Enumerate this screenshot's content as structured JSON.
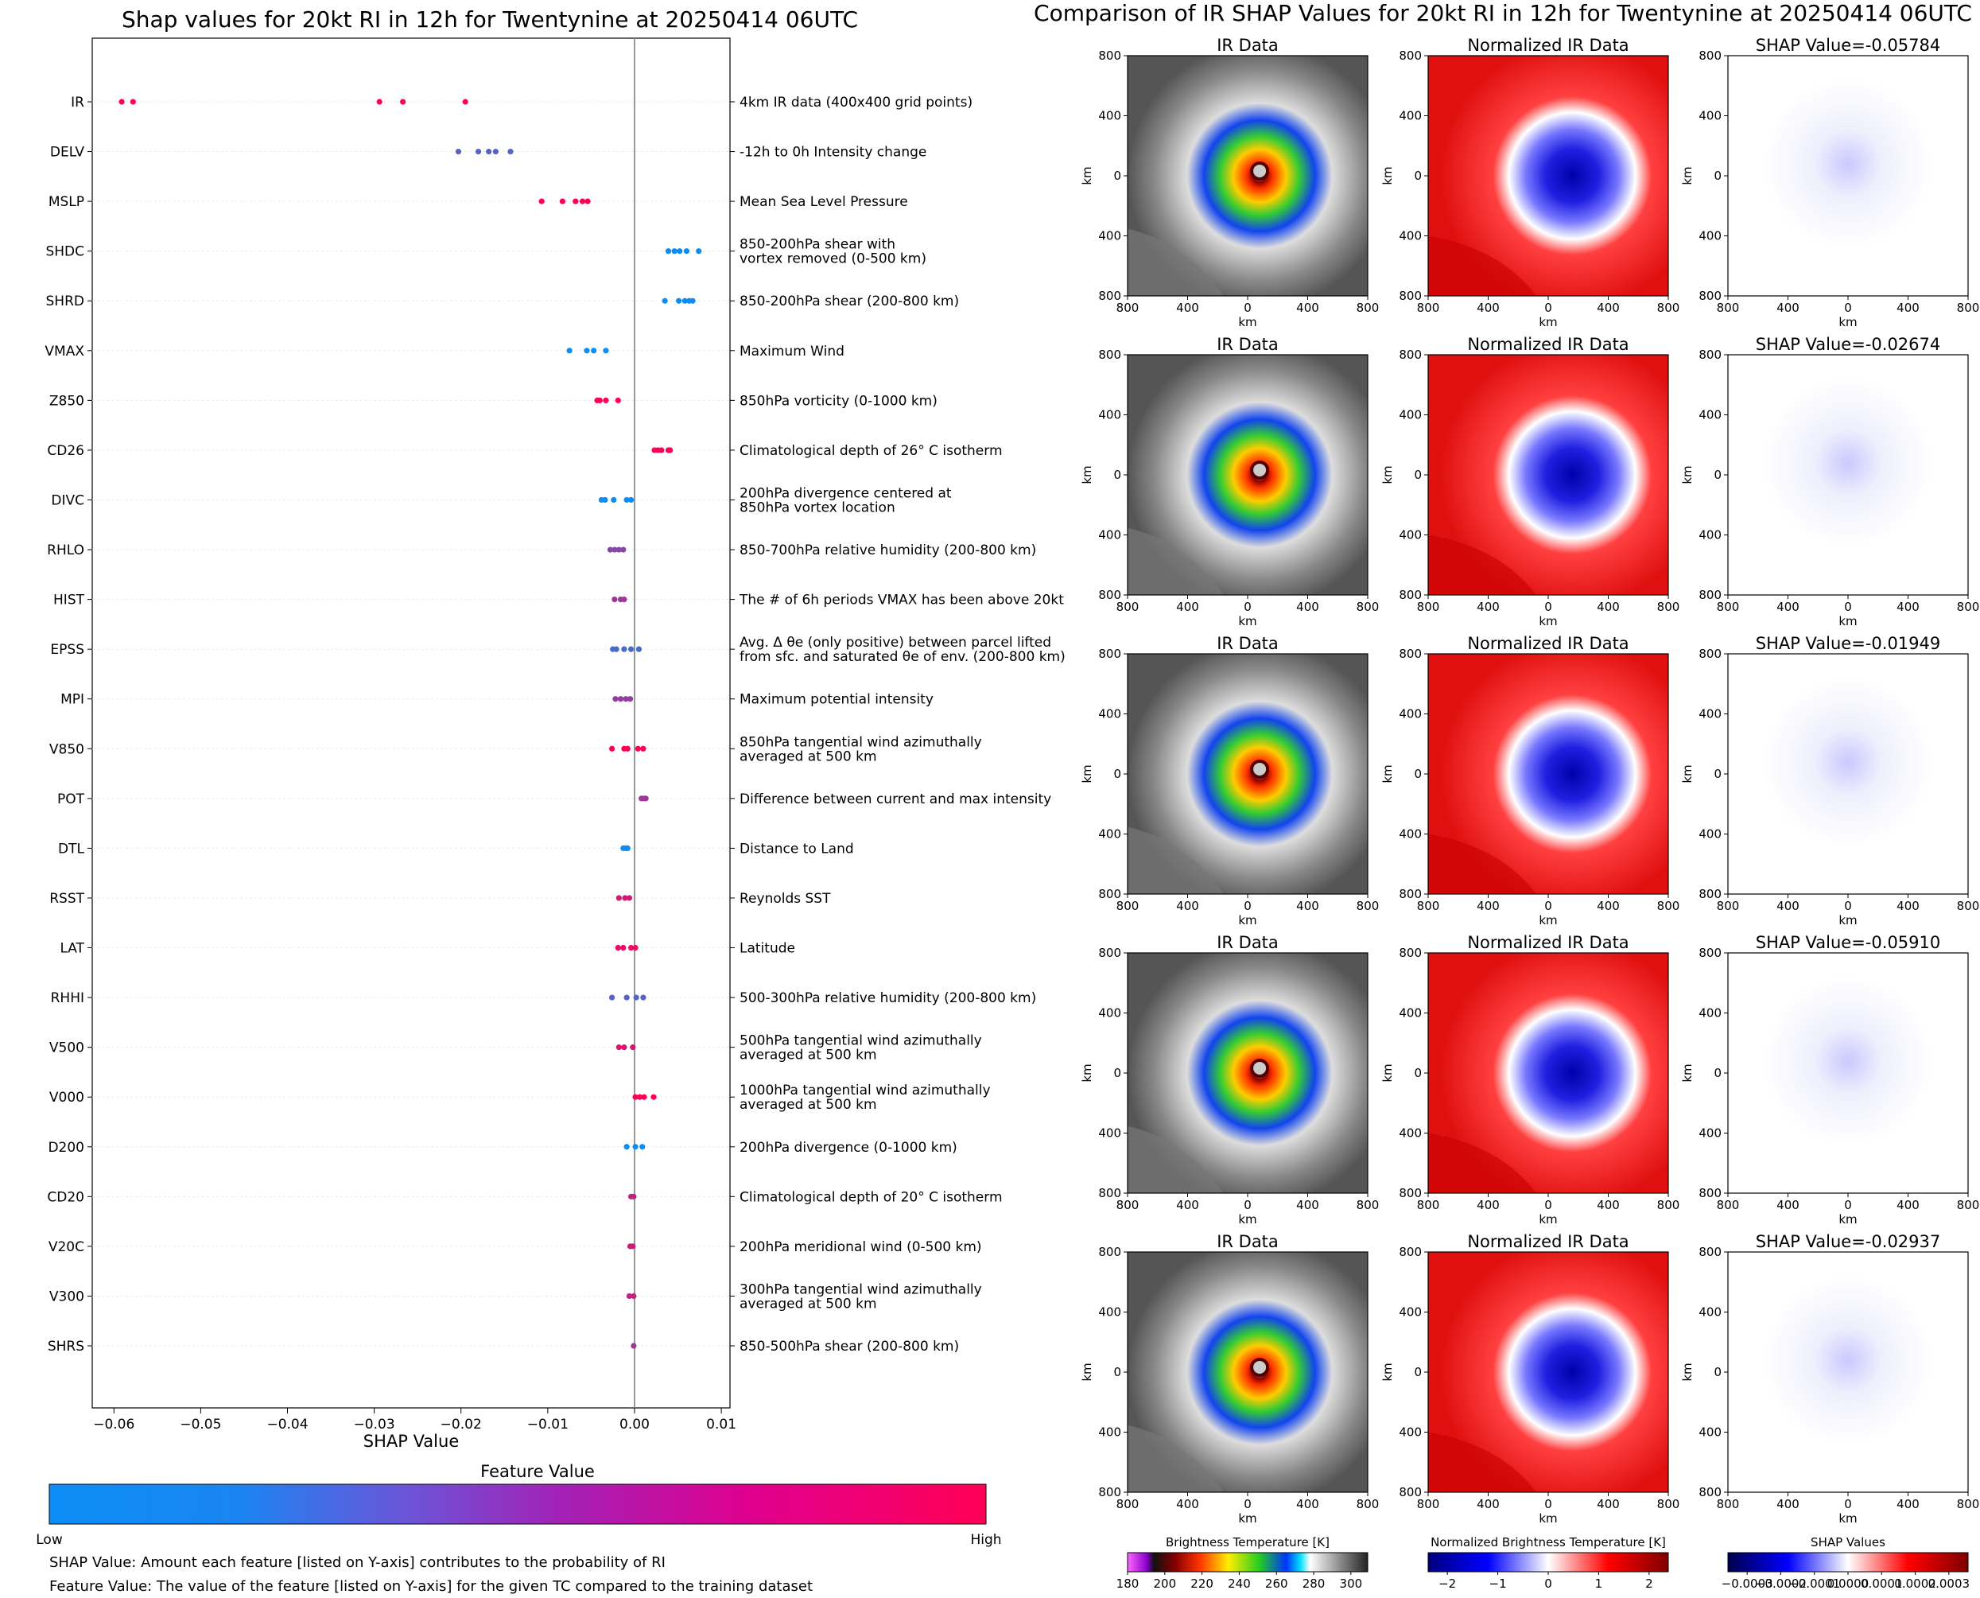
{
  "left_chart": {
    "title": "Shap values for 20kt RI in 12h for Twentynine at 20250414 06UTC",
    "xlabel": "SHAP Value"
  },
  "colorbar": {
    "title": "Feature Value",
    "low_label": "Low",
    "high_label": "High",
    "low_color": "#0b8df5",
    "high_color": "#ff0055"
  },
  "notes": {
    "line1": "SHAP Value: Amount each feature [listed on Y-axis] contributes to the probability of RI",
    "line2": "Feature Value: The value of the feature [listed on Y-axis] for the given TC compared to the training dataset"
  },
  "right_panel": {
    "title": "Comparison of IR SHAP Values for 20kt RI in 12h for Twentynine at 20250414 06UTC",
    "col_titles": [
      "IR Data",
      "Normalized IR Data"
    ],
    "shap_titles": [
      "SHAP Value=-0.05784",
      "SHAP Value=-0.02674",
      "SHAP Value=-0.01949",
      "SHAP Value=-0.05910",
      "SHAP Value=-0.02937"
    ],
    "axis_unit": "km",
    "tick_labels": [
      "800",
      "400",
      "0",
      "400",
      "800"
    ],
    "cbars": [
      {
        "title": "Brightness Temperature [K]",
        "ticks": [
          "180",
          "200",
          "220",
          "240",
          "260",
          "280",
          "300"
        ]
      },
      {
        "title": "Normalized Brightness Temperature [K]",
        "ticks": [
          "−2",
          "−1",
          "0",
          "1",
          "2"
        ]
      },
      {
        "title": "SHAP Values",
        "ticks": [
          "−0.0003",
          "−0.0002",
          "−0.0001",
          "0.0000",
          "0.0001",
          "0.0002",
          "0.0003"
        ]
      }
    ]
  },
  "chart_data": {
    "type": "scatter",
    "title": "Shap values for 20kt RI in 12h for Twentynine at 20250414 06UTC",
    "xlabel": "SHAP Value",
    "xlim": [
      -0.0625,
      0.011
    ],
    "xticks": [
      -0.06,
      -0.05,
      -0.04,
      -0.03,
      -0.02,
      -0.01,
      0.0,
      0.01
    ],
    "xtick_labels": [
      "−0.06",
      "−0.05",
      "−0.04",
      "−0.03",
      "−0.02",
      "−0.01",
      "0.00",
      "0.01"
    ],
    "features": [
      {
        "name": "IR",
        "desc": [
          "4km IR data (400x400 grid points)"
        ],
        "points": [
          [
            -0.0591,
            1.0
          ],
          [
            -0.0578,
            1.0
          ],
          [
            -0.0294,
            1.0
          ],
          [
            -0.0267,
            1.0
          ],
          [
            -0.0195,
            1.0
          ]
        ]
      },
      {
        "name": "DELV",
        "desc": [
          "-12h to 0h Intensity change"
        ],
        "points": [
          [
            -0.0203,
            0.3
          ],
          [
            -0.018,
            0.3
          ],
          [
            -0.0168,
            0.3
          ],
          [
            -0.016,
            0.3
          ],
          [
            -0.0143,
            0.3
          ]
        ]
      },
      {
        "name": "MSLP",
        "desc": [
          "Mean Sea Level Pressure"
        ],
        "points": [
          [
            -0.0107,
            1.0
          ],
          [
            -0.0083,
            1.0
          ],
          [
            -0.0068,
            1.0
          ],
          [
            -0.006,
            1.0
          ],
          [
            -0.0054,
            1.0
          ]
        ]
      },
      {
        "name": "SHDC",
        "desc": [
          "850-200hPa shear with",
          "vortex removed (0-500 km)"
        ],
        "points": [
          [
            0.0039,
            0.0
          ],
          [
            0.0046,
            0.0
          ],
          [
            0.0052,
            0.0
          ],
          [
            0.006,
            0.0
          ],
          [
            0.0074,
            0.0
          ]
        ]
      },
      {
        "name": "SHRD",
        "desc": [
          "850-200hPa shear (200-800 km)"
        ],
        "points": [
          [
            0.0035,
            0.0
          ],
          [
            0.0051,
            0.0
          ],
          [
            0.0058,
            0.0
          ],
          [
            0.0063,
            0.0
          ],
          [
            0.0067,
            0.0
          ]
        ]
      },
      {
        "name": "VMAX",
        "desc": [
          "Maximum Wind"
        ],
        "points": [
          [
            -0.0075,
            0.0
          ],
          [
            -0.0055,
            0.0
          ],
          [
            -0.0047,
            0.0
          ],
          [
            -0.0033,
            0.0
          ]
        ]
      },
      {
        "name": "Z850",
        "desc": [
          "850hPa vorticity (0-1000 km)"
        ],
        "points": [
          [
            -0.0043,
            1.0
          ],
          [
            -0.004,
            1.0
          ],
          [
            -0.0033,
            1.0
          ],
          [
            -0.0019,
            1.0
          ]
        ]
      },
      {
        "name": "CD26",
        "desc": [
          "Climatological depth of 26° C isotherm"
        ],
        "points": [
          [
            0.0023,
            1.0
          ],
          [
            0.0027,
            1.0
          ],
          [
            0.0031,
            1.0
          ],
          [
            0.0039,
            1.0
          ],
          [
            0.0041,
            1.0
          ]
        ]
      },
      {
        "name": "DIVC",
        "desc": [
          "200hPa divergence centered at",
          "850hPa vortex location"
        ],
        "points": [
          [
            -0.0038,
            0.0
          ],
          [
            -0.0034,
            0.0
          ],
          [
            -0.0024,
            0.0
          ],
          [
            -0.0009,
            0.0
          ],
          [
            -0.0004,
            0.0
          ]
        ]
      },
      {
        "name": "RHLO",
        "desc": [
          "850-700hPa relative humidity (200-800 km)"
        ],
        "points": [
          [
            -0.0028,
            0.5
          ],
          [
            -0.0023,
            0.5
          ],
          [
            -0.0018,
            0.5
          ],
          [
            -0.0013,
            0.5
          ]
        ]
      },
      {
        "name": "HIST",
        "desc": [
          "The # of 6h periods VMAX has been above 20kt"
        ],
        "points": [
          [
            -0.0023,
            0.6
          ],
          [
            -0.0016,
            0.6
          ],
          [
            -0.0012,
            0.6
          ]
        ]
      },
      {
        "name": "EPSS",
        "desc": [
          "Avg. Δ θe (only positive) between parcel lifted",
          "from sfc. and saturated θe of env. (200-800 km)"
        ],
        "points": [
          [
            -0.0025,
            0.25
          ],
          [
            -0.0021,
            0.25
          ],
          [
            -0.0012,
            0.25
          ],
          [
            -0.0004,
            0.25
          ],
          [
            0.0005,
            0.25
          ]
        ]
      },
      {
        "name": "MPI",
        "desc": [
          "Maximum potential intensity"
        ],
        "points": [
          [
            -0.0022,
            0.55
          ],
          [
            -0.0016,
            0.55
          ],
          [
            -0.001,
            0.55
          ],
          [
            -0.0005,
            0.55
          ]
        ]
      },
      {
        "name": "V850",
        "desc": [
          "850hPa tangential wind azimuthally",
          "averaged at 500 km"
        ],
        "points": [
          [
            -0.0026,
            1.0
          ],
          [
            -0.0012,
            1.0
          ],
          [
            -0.0008,
            1.0
          ],
          [
            0.0004,
            1.0
          ],
          [
            0.001,
            1.0
          ]
        ]
      },
      {
        "name": "POT",
        "desc": [
          "Difference between current and max intensity"
        ],
        "points": [
          [
            0.0008,
            0.6
          ],
          [
            0.0011,
            0.6
          ],
          [
            0.0013,
            0.6
          ]
        ]
      },
      {
        "name": "DTL",
        "desc": [
          "Distance to Land"
        ],
        "points": [
          [
            -0.0013,
            0.0
          ],
          [
            -0.001,
            0.0
          ],
          [
            -0.0008,
            0.0
          ]
        ]
      },
      {
        "name": "RSST",
        "desc": [
          "Reynolds SST"
        ],
        "points": [
          [
            -0.0018,
            0.8
          ],
          [
            -0.0011,
            0.8
          ],
          [
            -0.0006,
            0.8
          ]
        ]
      },
      {
        "name": "LAT",
        "desc": [
          "Latitude"
        ],
        "points": [
          [
            -0.0019,
            0.9
          ],
          [
            -0.0013,
            0.9
          ],
          [
            -0.0004,
            0.9
          ],
          [
            0.0001,
            0.9
          ]
        ]
      },
      {
        "name": "RHHI",
        "desc": [
          "500-300hPa relative humidity (200-800 km)"
        ],
        "points": [
          [
            -0.0026,
            0.3
          ],
          [
            -0.0009,
            0.3
          ],
          [
            0.0002,
            0.3
          ],
          [
            0.001,
            0.3
          ]
        ]
      },
      {
        "name": "V500",
        "desc": [
          "500hPa tangential wind azimuthally",
          "averaged at 500 km"
        ],
        "points": [
          [
            -0.0018,
            0.85
          ],
          [
            -0.0012,
            0.85
          ],
          [
            -0.0002,
            0.85
          ]
        ]
      },
      {
        "name": "V000",
        "desc": [
          "1000hPa tangential wind azimuthally",
          "averaged at 500 km"
        ],
        "points": [
          [
            0.0001,
            1.0
          ],
          [
            0.0006,
            1.0
          ],
          [
            0.0011,
            1.0
          ],
          [
            0.0022,
            1.0
          ]
        ]
      },
      {
        "name": "D200",
        "desc": [
          "200hPa divergence (0-1000 km)"
        ],
        "points": [
          [
            -0.0009,
            0.0
          ],
          [
            0.0001,
            0.0
          ],
          [
            0.0009,
            0.0
          ]
        ]
      },
      {
        "name": "CD20",
        "desc": [
          "Climatological depth of 20° C isotherm"
        ],
        "points": [
          [
            -0.0004,
            0.75
          ],
          [
            -0.0001,
            0.75
          ]
        ]
      },
      {
        "name": "V20C",
        "desc": [
          "200hPa meridional wind (0-500 km)"
        ],
        "points": [
          [
            -0.0005,
            0.8
          ],
          [
            -0.0002,
            0.8
          ]
        ]
      },
      {
        "name": "V300",
        "desc": [
          "300hPa tangential wind azimuthally",
          "averaged at 500 km"
        ],
        "points": [
          [
            -0.0006,
            0.75
          ],
          [
            -0.0001,
            0.75
          ]
        ]
      },
      {
        "name": "SHRS",
        "desc": [
          "850-500hPa shear (200-800 km)"
        ],
        "points": [
          [
            -0.0001,
            0.6
          ]
        ]
      }
    ]
  }
}
